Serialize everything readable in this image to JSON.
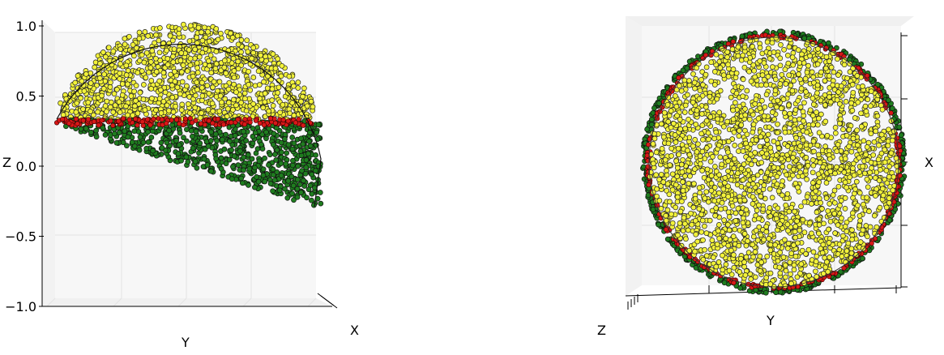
{
  "chart_data": [
    {
      "type": "scatter",
      "view": "side",
      "xlabel": "Y",
      "depth_label": "X",
      "zlabel": "Z",
      "z_ticks": [
        "1.0",
        "0.5",
        "0.0",
        "−0.5",
        "−1.0"
      ],
      "zlim": [
        -1.0,
        1.0
      ],
      "grid": true,
      "series": [
        {
          "color": "#f2f23a",
          "region": "upper cap",
          "z_range": [
            0.3,
            1.0
          ]
        },
        {
          "color": "#d81818",
          "region": "boundary band",
          "z_range": [
            0.27,
            0.32
          ]
        },
        {
          "color": "#1f7d1f",
          "region": "lower band",
          "z_range": [
            -0.3,
            0.3
          ]
        }
      ]
    },
    {
      "type": "scatter",
      "view": "top",
      "xlabel": "Y",
      "right_label": "X",
      "corner_label": "Z",
      "grid": true,
      "series": [
        {
          "color": "#f2f23a",
          "region": "disc interior"
        },
        {
          "color": "#d81818",
          "region": "rim"
        },
        {
          "color": "#1f7d1f",
          "region": "outer edge"
        }
      ]
    }
  ]
}
